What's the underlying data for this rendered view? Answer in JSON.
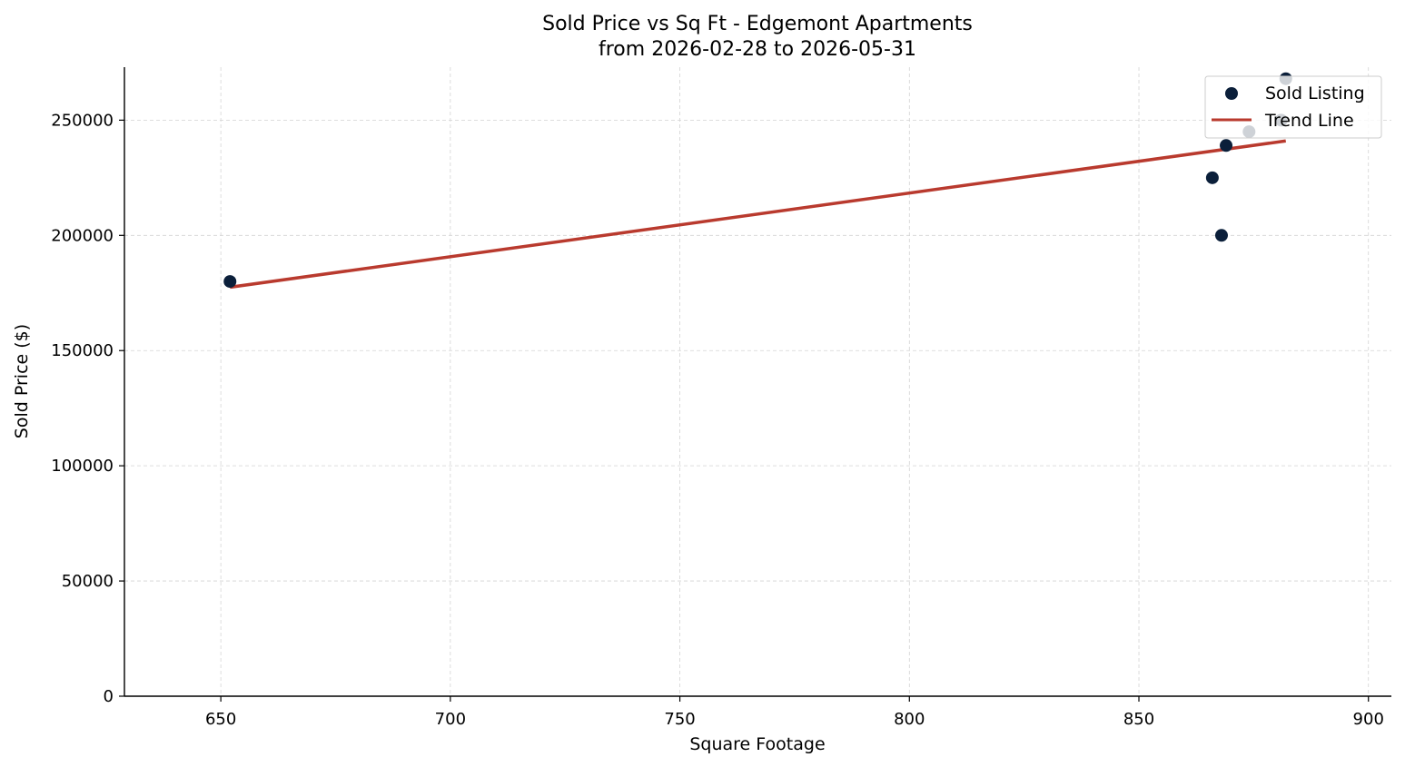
{
  "chart_data": {
    "type": "scatter",
    "title": "Sold Price vs Sq Ft - Edgemont Apartments",
    "subtitle": "from 2026-02-28 to 2026-05-31",
    "xlabel": "Square Footage",
    "ylabel": "Sold Price ($)",
    "xlim": [
      629,
      905
    ],
    "ylim": [
      0,
      273000
    ],
    "x_ticks": [
      650,
      700,
      750,
      800,
      850,
      900
    ],
    "y_ticks": [
      0,
      50000,
      100000,
      150000,
      200000,
      250000
    ],
    "grid": true,
    "legend_position": "top-right",
    "series": [
      {
        "name": "Sold Listing",
        "kind": "scatter",
        "color": "#0b1f3a",
        "points": [
          {
            "x": 652,
            "y": 180000
          },
          {
            "x": 866,
            "y": 225000
          },
          {
            "x": 868,
            "y": 200000
          },
          {
            "x": 869,
            "y": 239000
          },
          {
            "x": 874,
            "y": 245000
          },
          {
            "x": 881,
            "y": 250000
          },
          {
            "x": 882,
            "y": 268000
          }
        ]
      },
      {
        "name": "Trend Line",
        "kind": "line",
        "color": "#b93a2e",
        "points": [
          {
            "x": 652,
            "y": 177500
          },
          {
            "x": 882,
            "y": 241000
          }
        ]
      }
    ]
  }
}
